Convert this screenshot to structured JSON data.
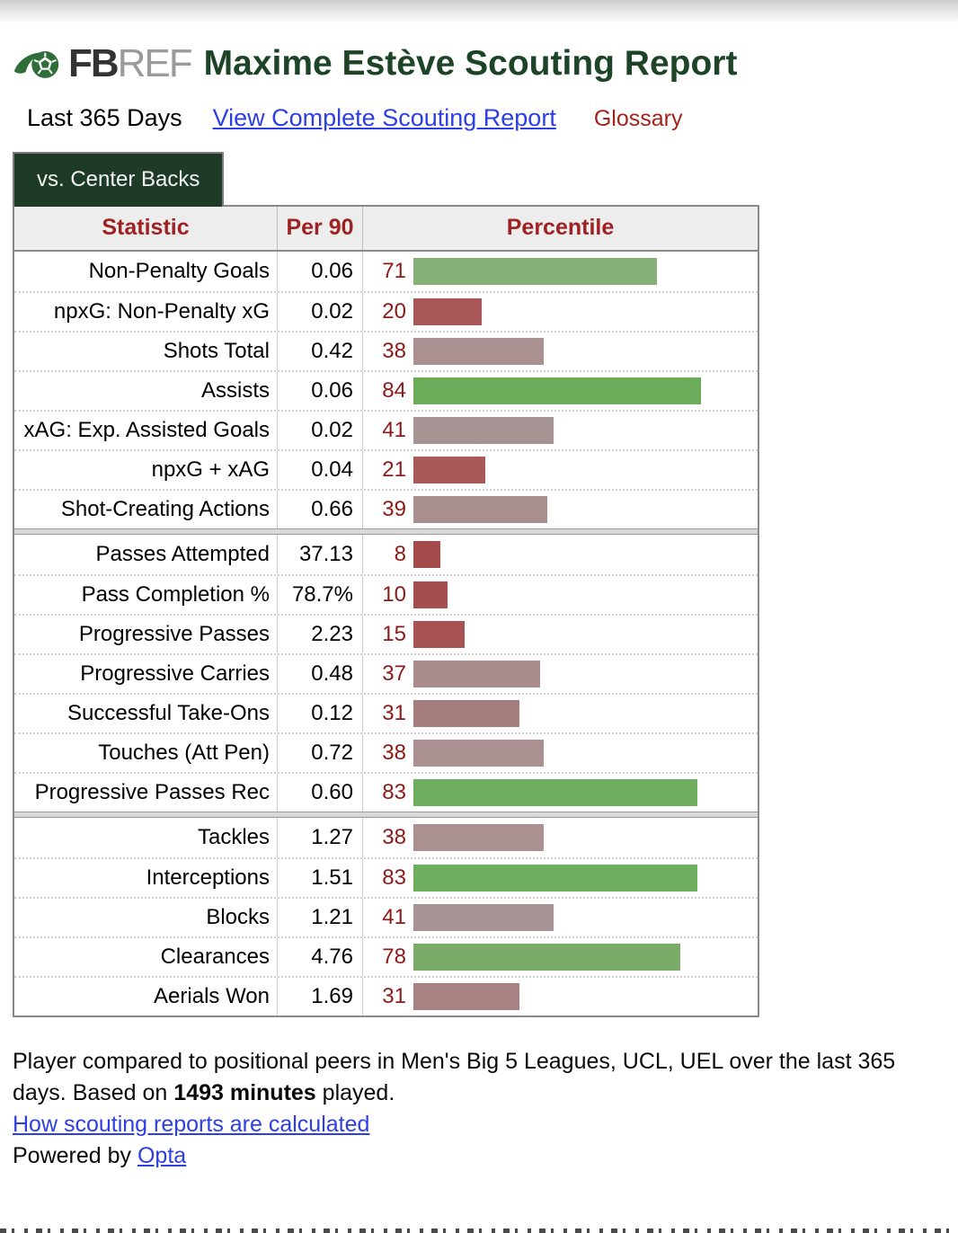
{
  "brand": {
    "fb": "FB",
    "ref": "REF",
    "logo_icon": "soccer-ball-swoosh-icon"
  },
  "header": {
    "title": "Maxime Estève Scouting Report",
    "period": "Last 365 Days",
    "complete_report_link": "View Complete Scouting Report",
    "glossary_link": "Glossary"
  },
  "tab": {
    "label": "vs. Center Backs"
  },
  "colors": {
    "title_green": "#1e4427",
    "tab_green": "#1d3b27",
    "header_red": "#9e2222",
    "percentile_number_red": "#8b1a1a",
    "link_blue": "#2d3fe3",
    "glossary_red": "#a3231c",
    "logo_green": "#2f6e38"
  },
  "table": {
    "headers": [
      "Statistic",
      "Per 90",
      "Percentile"
    ],
    "sections": [
      {
        "rows": [
          {
            "stat": "Non-Penalty Goals",
            "per90": "0.06",
            "percentile": 71,
            "bar_color": "#86b075"
          },
          {
            "stat": "npxG: Non-Penalty xG",
            "per90": "0.02",
            "percentile": 20,
            "bar_color": "#aa5757"
          },
          {
            "stat": "Shots Total",
            "per90": "0.42",
            "percentile": 38,
            "bar_color": "#aa9090"
          },
          {
            "stat": "Assists",
            "per90": "0.06",
            "percentile": 84,
            "bar_color": "#6cad5b"
          },
          {
            "stat": "xAG: Exp. Assisted Goals",
            "per90": "0.02",
            "percentile": 41,
            "bar_color": "#a69393"
          },
          {
            "stat": "npxG + xAG",
            "per90": "0.04",
            "percentile": 21,
            "bar_color": "#aa5959"
          },
          {
            "stat": "Shot-Creating Actions",
            "per90": "0.66",
            "percentile": 39,
            "bar_color": "#a98e8e"
          }
        ]
      },
      {
        "rows": [
          {
            "stat": "Passes Attempted",
            "per90": "37.13",
            "percentile": 8,
            "bar_color": "#a34b4b"
          },
          {
            "stat": "Pass Completion %",
            "per90": "78.7%",
            "percentile": 10,
            "bar_color": "#a44e4e"
          },
          {
            "stat": "Progressive Passes",
            "per90": "2.23",
            "percentile": 15,
            "bar_color": "#a75353"
          },
          {
            "stat": "Progressive Carries",
            "per90": "0.48",
            "percentile": 37,
            "bar_color": "#a98d8d"
          },
          {
            "stat": "Successful Take-Ons",
            "per90": "0.12",
            "percentile": 31,
            "bar_color": "#a77e7e"
          },
          {
            "stat": "Touches (Att Pen)",
            "per90": "0.72",
            "percentile": 38,
            "bar_color": "#aa9090"
          },
          {
            "stat": "Progressive Passes Rec",
            "per90": "0.60",
            "percentile": 83,
            "bar_color": "#6fae5f"
          }
        ]
      },
      {
        "rows": [
          {
            "stat": "Tackles",
            "per90": "1.27",
            "percentile": 38,
            "bar_color": "#aa9090"
          },
          {
            "stat": "Interceptions",
            "per90": "1.51",
            "percentile": 83,
            "bar_color": "#6fae5f"
          },
          {
            "stat": "Blocks",
            "per90": "1.21",
            "percentile": 41,
            "bar_color": "#a69393"
          },
          {
            "stat": "Clearances",
            "per90": "4.76",
            "percentile": 78,
            "bar_color": "#7bab68"
          },
          {
            "stat": "Aerials Won",
            "per90": "1.69",
            "percentile": 31,
            "bar_color": "#a78282"
          }
        ]
      }
    ]
  },
  "footer": {
    "line1_before": "Player compared to positional peers in Men's Big 5 Leagues, UCL, UEL over the last 365 days. Based on ",
    "line1_bold": "1493 minutes",
    "line1_after": " played.",
    "how_link": "How scouting reports are calculated",
    "powered_prefix": "Powered by ",
    "opta_link": "Opta"
  },
  "chart_data": {
    "type": "bar",
    "title": "Maxime Estève Scouting Report — vs. Center Backs",
    "xlabel": "Percentile",
    "ylabel": "Statistic",
    "xlim": [
      0,
      100
    ],
    "grid": false,
    "legend_position": "none",
    "categories": [
      "Non-Penalty Goals",
      "npxG: Non-Penalty xG",
      "Shots Total",
      "Assists",
      "xAG: Exp. Assisted Goals",
      "npxG + xAG",
      "Shot-Creating Actions",
      "Passes Attempted",
      "Pass Completion %",
      "Progressive Passes",
      "Progressive Carries",
      "Successful Take-Ons",
      "Touches (Att Pen)",
      "Progressive Passes Rec",
      "Tackles",
      "Interceptions",
      "Blocks",
      "Clearances",
      "Aerials Won"
    ],
    "series": [
      {
        "name": "Per 90",
        "values": [
          "0.06",
          "0.02",
          "0.42",
          "0.06",
          "0.02",
          "0.04",
          "0.66",
          "37.13",
          "78.7%",
          "2.23",
          "0.48",
          "0.12",
          "0.72",
          "0.60",
          "1.27",
          "1.51",
          "1.21",
          "4.76",
          "1.69"
        ]
      },
      {
        "name": "Percentile",
        "values": [
          71,
          20,
          38,
          84,
          41,
          21,
          39,
          8,
          10,
          15,
          37,
          31,
          38,
          83,
          38,
          83,
          41,
          78,
          31
        ]
      }
    ]
  }
}
